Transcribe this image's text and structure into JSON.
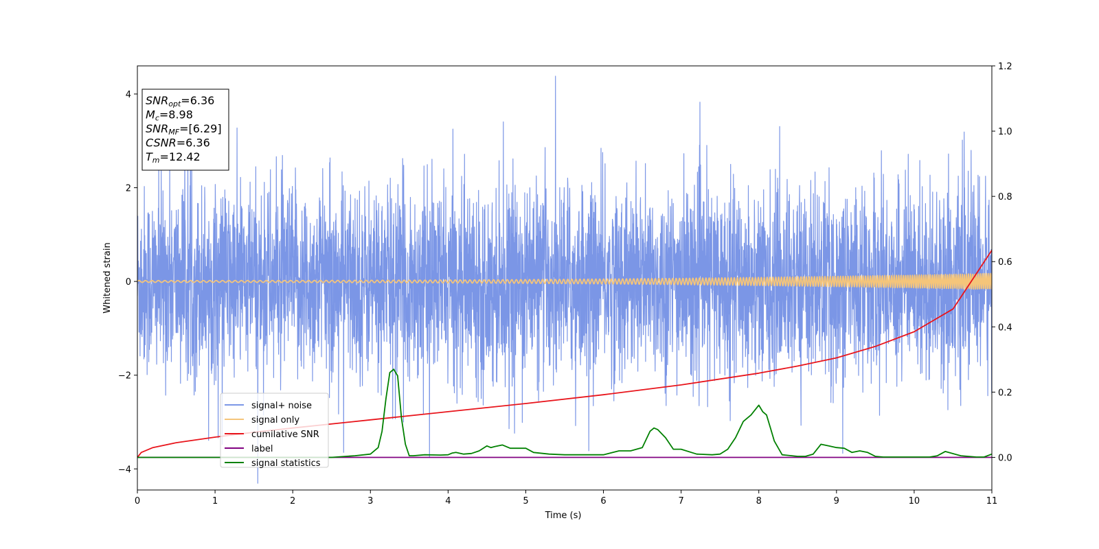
{
  "chart_data": {
    "type": "line",
    "xlabel": "Time (s)",
    "ylabel": "Whitened strain",
    "xlim": [
      0,
      11
    ],
    "ylim_left": [
      -4.45,
      4.6
    ],
    "ylim_right": [
      -0.1,
      1.2
    ],
    "x_ticks": [
      0,
      1,
      2,
      3,
      4,
      5,
      6,
      7,
      8,
      9,
      10,
      11
    ],
    "y_ticks_left": [
      -4,
      -2,
      0,
      2,
      4
    ],
    "y_ticks_left_labels": [
      "−4",
      "−2",
      "0",
      "2",
      "4"
    ],
    "y_ticks_right": [
      0.0,
      0.2,
      0.4,
      0.6,
      0.8,
      1.0,
      1.2
    ],
    "y_ticks_right_labels": [
      "0.0",
      "0.2",
      "0.4",
      "0.6",
      "0.8",
      "1.0",
      "1.2"
    ],
    "legend_placement": "lower-left",
    "info_box": {
      "lines": [
        {
          "var": "SNR",
          "sub": "opt",
          "value": "=6.36"
        },
        {
          "var": "M",
          "sub": "c",
          "value": "=8.98"
        },
        {
          "var": "SNR",
          "sub": "MF",
          "value": "=[6.29]"
        },
        {
          "var": "CSNR",
          "sub": "",
          "value": "=6.36"
        },
        {
          "var": "T",
          "sub": "m",
          "value": "=12.42"
        }
      ]
    },
    "series": [
      {
        "name": "signal+ noise",
        "color": "#7b96e6",
        "axis": "left",
        "kind": "noise",
        "noise_sigma": 1.0
      },
      {
        "name": "signal only",
        "color": "#f5c57a",
        "axis": "left",
        "kind": "chirp",
        "amplitude_start": 0.02,
        "amplitude_end": 0.17
      },
      {
        "name": "cumilative SNR",
        "color": "#e8141b",
        "axis": "right",
        "x": [
          0,
          0.05,
          0.2,
          0.5,
          1,
          1.5,
          2,
          3,
          4,
          5,
          6,
          7,
          8,
          8.5,
          9,
          9.5,
          10,
          10.5,
          11
        ],
        "y": [
          0.0,
          0.015,
          0.03,
          0.045,
          0.062,
          0.077,
          0.09,
          0.115,
          0.14,
          0.165,
          0.192,
          0.222,
          0.258,
          0.28,
          0.305,
          0.34,
          0.385,
          0.455,
          0.635
        ]
      },
      {
        "name": "label",
        "color": "#800080",
        "axis": "right",
        "x": [
          0,
          11
        ],
        "y": [
          0.0,
          0.0
        ]
      },
      {
        "name": "signal statistics",
        "color": "#008000",
        "axis": "right",
        "x": [
          0,
          0.5,
          1,
          1.5,
          2,
          2.5,
          2.8,
          3.0,
          3.1,
          3.15,
          3.2,
          3.25,
          3.3,
          3.35,
          3.4,
          3.45,
          3.5,
          3.55,
          3.7,
          3.9,
          4.0,
          4.05,
          4.1,
          4.2,
          4.3,
          4.4,
          4.5,
          4.55,
          4.6,
          4.7,
          4.8,
          5.0,
          5.1,
          5.3,
          5.5,
          5.7,
          6.0,
          6.2,
          6.35,
          6.5,
          6.6,
          6.65,
          6.7,
          6.8,
          6.9,
          7.0,
          7.2,
          7.4,
          7.5,
          7.6,
          7.7,
          7.8,
          7.9,
          8.0,
          8.05,
          8.1,
          8.15,
          8.2,
          8.3,
          8.5,
          8.6,
          8.7,
          8.8,
          8.9,
          9.0,
          9.1,
          9.2,
          9.3,
          9.4,
          9.5,
          9.6,
          9.8,
          10.0,
          10.2,
          10.3,
          10.4,
          10.6,
          10.8,
          10.9,
          11.0
        ],
        "y": [
          0.0,
          0.0,
          0.0,
          0.0,
          0.0,
          0.0,
          0.005,
          0.01,
          0.03,
          0.08,
          0.18,
          0.26,
          0.27,
          0.25,
          0.12,
          0.04,
          0.005,
          0.005,
          0.008,
          0.007,
          0.008,
          0.013,
          0.015,
          0.01,
          0.012,
          0.02,
          0.035,
          0.03,
          0.033,
          0.038,
          0.028,
          0.028,
          0.015,
          0.01,
          0.008,
          0.008,
          0.008,
          0.02,
          0.02,
          0.03,
          0.08,
          0.09,
          0.085,
          0.06,
          0.025,
          0.025,
          0.01,
          0.008,
          0.01,
          0.025,
          0.06,
          0.11,
          0.13,
          0.16,
          0.14,
          0.13,
          0.09,
          0.05,
          0.008,
          0.003,
          0.003,
          0.01,
          0.04,
          0.035,
          0.03,
          0.028,
          0.015,
          0.02,
          0.015,
          0.003,
          0.001,
          0.001,
          0.001,
          0.001,
          0.005,
          0.018,
          0.005,
          0.001,
          0.001,
          0.01
        ]
      }
    ]
  }
}
